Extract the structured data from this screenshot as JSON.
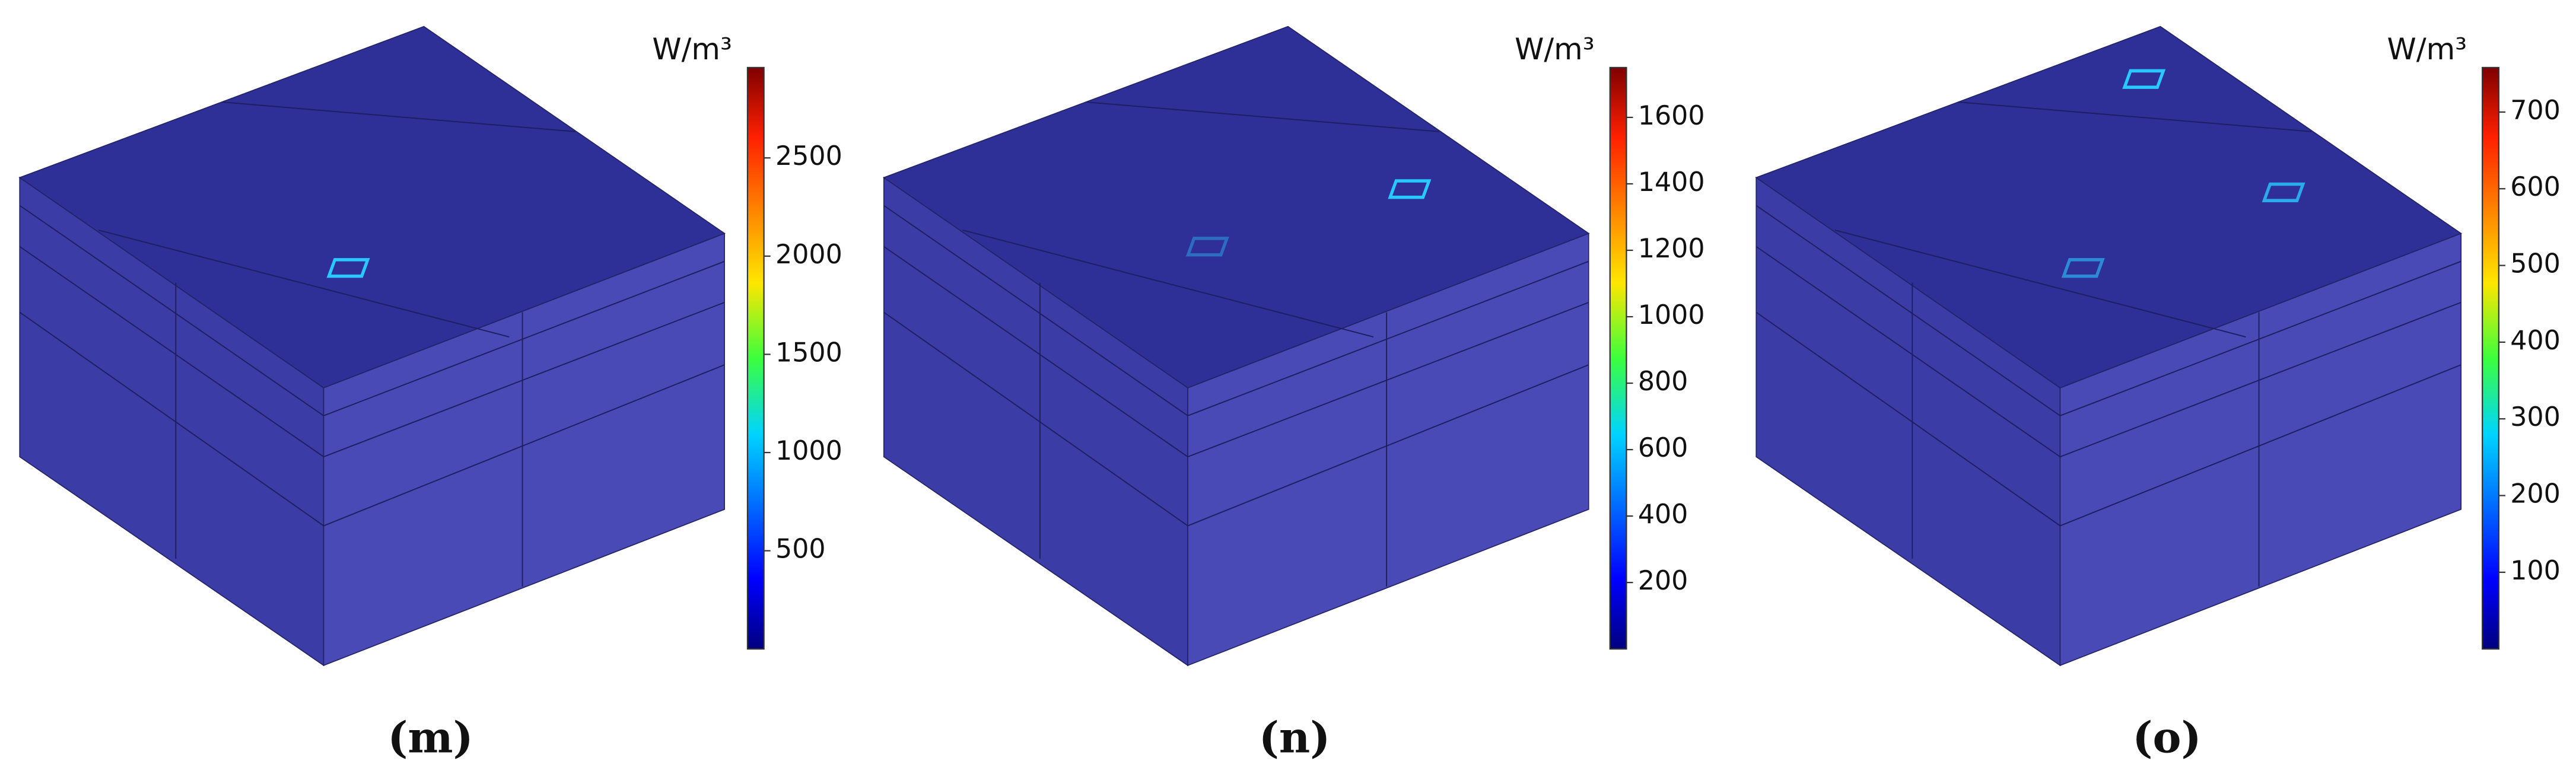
{
  "panels": [
    {
      "label": "(m)",
      "unit": "W/m³",
      "range": [
        0,
        2960
      ],
      "ticks": [
        500,
        1000,
        1500,
        2000,
        2500
      ]
    },
    {
      "label": "(n)",
      "unit": "W/m³",
      "range": [
        0,
        1750
      ],
      "ticks": [
        200,
        400,
        600,
        800,
        1000,
        1200,
        1400,
        1600
      ]
    },
    {
      "label": "(o)",
      "unit": "W/m³",
      "range": [
        0,
        758
      ],
      "ticks": [
        100,
        200,
        300,
        400,
        500,
        600,
        700
      ]
    }
  ]
}
